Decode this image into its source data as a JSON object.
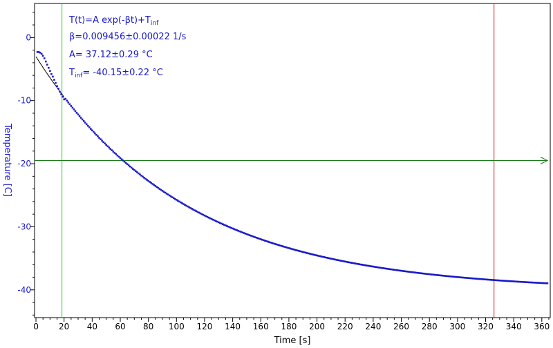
{
  "chart_data": {
    "type": "scatter",
    "xlabel": "Time [s]",
    "ylabel": "Temperature [C]",
    "xlim": [
      -1,
      366
    ],
    "ylim": [
      -44.4,
      5.4
    ],
    "x_ticks": [
      0,
      20,
      40,
      60,
      80,
      100,
      120,
      140,
      160,
      180,
      200,
      220,
      240,
      260,
      280,
      300,
      320,
      340,
      360
    ],
    "y_ticks": [
      0,
      -10,
      -20,
      -30,
      -40
    ],
    "grid": false,
    "series": [
      {
        "kind": "measurement",
        "color": "#1a1ac8",
        "x_start": 1,
        "x_end": 364,
        "x_step": 1,
        "model": {
          "A": 37.12,
          "beta": 0.009456,
          "T_inf": -40.15
        },
        "initial_points": [
          [
            1,
            -2.3
          ],
          [
            2,
            -2.3
          ],
          [
            3,
            -2.4
          ],
          [
            4,
            -2.6
          ],
          [
            5,
            -2.9
          ],
          [
            6,
            -3.3
          ],
          [
            7,
            -3.8
          ],
          [
            8,
            -4.3
          ],
          [
            9,
            -4.8
          ],
          [
            10,
            -5.3
          ],
          [
            11,
            -5.8
          ],
          [
            12,
            -6.2
          ],
          [
            13,
            -6.7
          ],
          [
            14,
            -7.2
          ],
          [
            15,
            -7.7
          ],
          [
            16,
            -8.1
          ],
          [
            17,
            -8.6
          ],
          [
            18,
            -9.0
          ],
          [
            19,
            -9.4
          ],
          [
            20,
            -9.8
          ]
        ]
      },
      {
        "kind": "fit",
        "color": "#000000",
        "x_start": 0,
        "x_end": 20,
        "model": {
          "A": 37.12,
          "beta": 0.009456,
          "T_inf": -40.15
        }
      }
    ],
    "cursors": [
      {
        "orientation": "vertical",
        "x": 18.5,
        "color": "#33cc33"
      },
      {
        "orientation": "vertical",
        "x": 326,
        "color": "#cc2222"
      },
      {
        "orientation": "horizontal",
        "y": -19.5,
        "color": "#1a7a1a",
        "arrow": true
      }
    ],
    "annotations": {
      "formula_main": "T(t)=A exp(-βt)+T",
      "formula_sub": "inf",
      "beta_line": "β=0.009456±0.00022 1/s",
      "a_line": "A= 37.12±0.29 °C",
      "tinf_main": "T",
      "tinf_sub": "inf",
      "tinf_value": "= -40.15±0.22 °C"
    }
  }
}
